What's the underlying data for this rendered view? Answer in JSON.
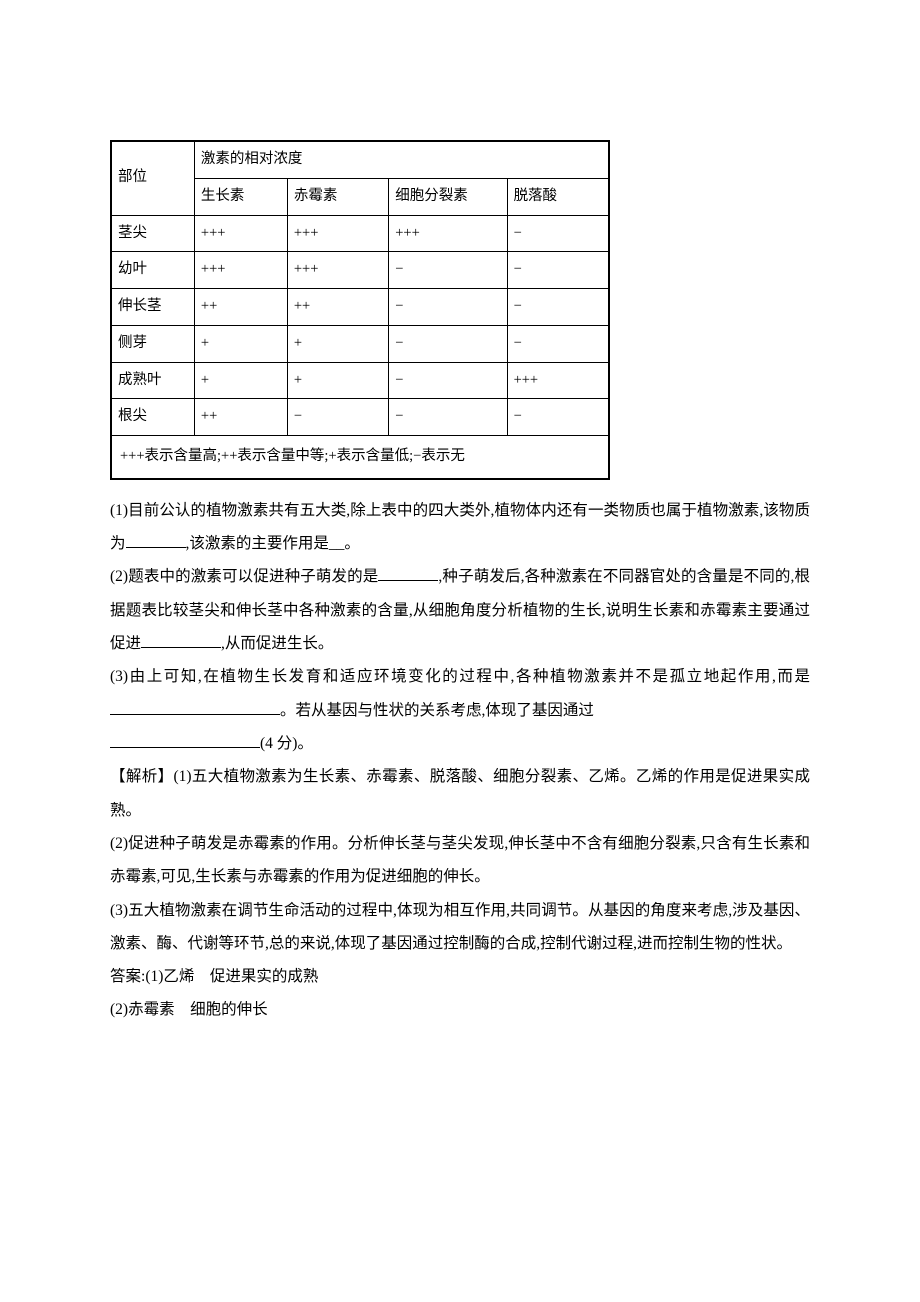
{
  "table": {
    "header_rowspan": "部位",
    "header_colspan": "激素的相对浓度",
    "columns": [
      "生长素",
      "赤霉素",
      "细胞分裂素",
      "脱落酸"
    ],
    "rows": [
      {
        "label": "茎尖",
        "cells": [
          "+++",
          "+++",
          "+++",
          "−"
        ]
      },
      {
        "label": "幼叶",
        "cells": [
          "+++",
          "+++",
          "−",
          "−"
        ]
      },
      {
        "label": "伸长茎",
        "cells": [
          "++",
          "++",
          "−",
          "−"
        ]
      },
      {
        "label": "侧芽",
        "cells": [
          "+",
          "+",
          "−",
          "−"
        ]
      },
      {
        "label": "成熟叶",
        "cells": [
          "+",
          "+",
          "−",
          "+++"
        ]
      },
      {
        "label": "根尖",
        "cells": [
          "++",
          "−",
          "−",
          "−"
        ]
      }
    ],
    "legend": "+++表示含量高;++表示含量中等;+表示含量低;−表示无"
  },
  "body": {
    "q1a": "(1)目前公认的植物激素共有五大类,除上表中的四大类外,植物体内还有一类物质也属于植物激素,该物质为",
    "q1b": ",该激素的主要作用是__。",
    "q2a": "(2)题表中的激素可以促进种子萌发的是",
    "q2b": ",种子萌发后,各种激素在不同器官处的含量是不同的,根据题表比较茎尖和伸长茎中各种激素的含量,从细胞角度分析植物的生长,说明生长素和赤霉素主要通过促进",
    "q2c": ",从而促进生长。",
    "q3a": "(3)由上可知,在植物生长发育和适应环境变化的过程中,各种植物激素并不是孤立地起作用,而是",
    "q3b": "。若从基因与性状的关系考虑,体现了基因通过",
    "q3c": "(4 分)。",
    "analysis_label": "【解析】",
    "a1": "(1)五大植物激素为生长素、赤霉素、脱落酸、细胞分裂素、乙烯。乙烯的作用是促进果实成熟。",
    "a2": "(2)促进种子萌发是赤霉素的作用。分析伸长茎与茎尖发现,伸长茎中不含有细胞分裂素,只含有生长素和赤霉素,可见,生长素与赤霉素的作用为促进细胞的伸长。",
    "a3": "(3)五大植物激素在调节生命活动的过程中,体现为相互作用,共同调节。从基因的角度来考虑,涉及基因、激素、酶、代谢等环节,总的来说,体现了基因通过控制酶的合成,控制代谢过程,进而控制生物的性状。",
    "ans_label": "答案:",
    "ans1": "(1)乙烯　促进果实的成熟",
    "ans2": "(2)赤霉素　细胞的伸长"
  }
}
